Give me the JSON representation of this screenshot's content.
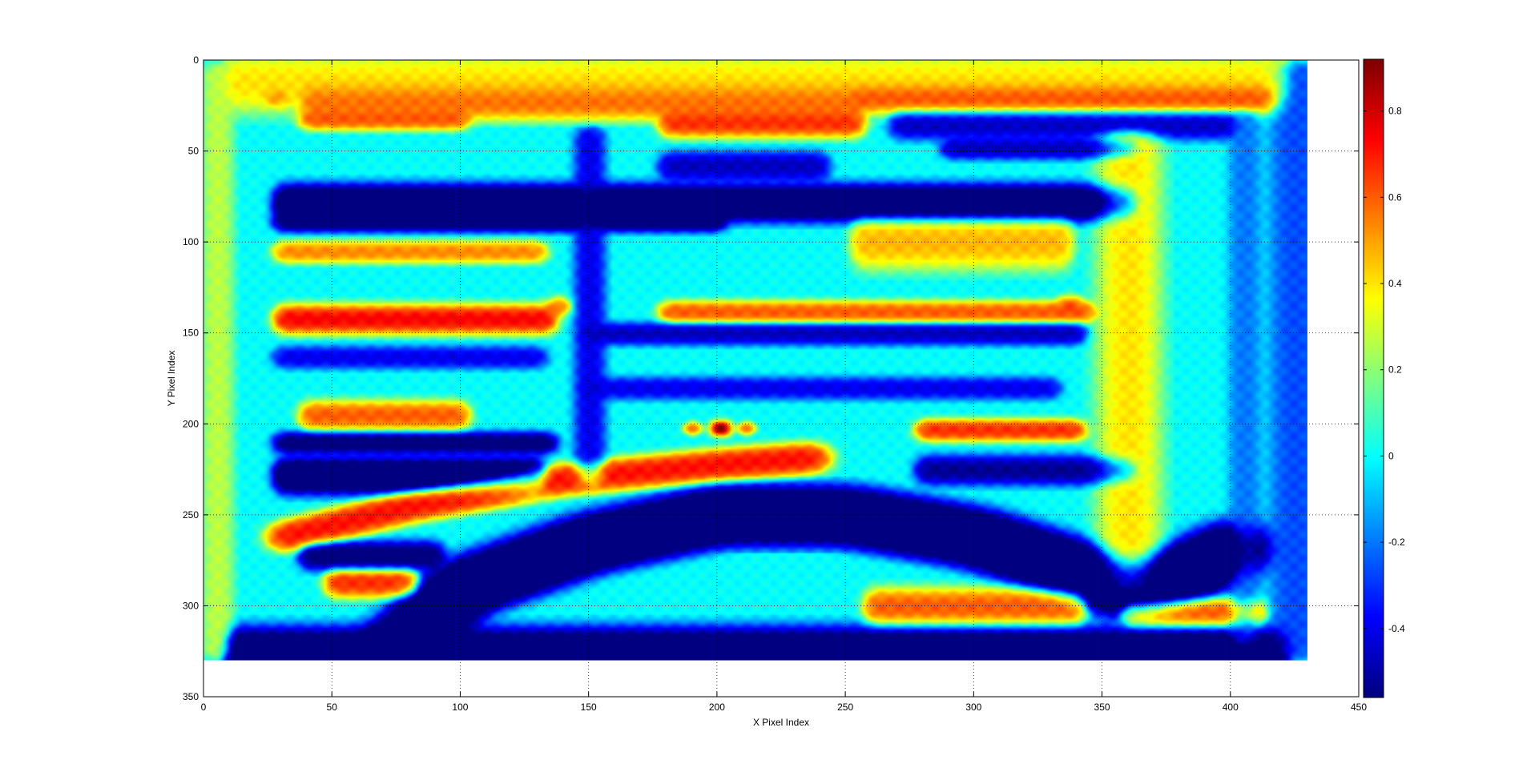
{
  "chart_data": {
    "type": "heatmap",
    "title": "",
    "xlabel": "X Pixel Index",
    "ylabel": "Y Pixel Index",
    "xlim": [
      0,
      450
    ],
    "ylim": [
      350,
      0
    ],
    "y_reversed": true,
    "grid": true,
    "grid_style": "dotted",
    "image_extent": {
      "x": [
        0,
        430
      ],
      "y": [
        0,
        330
      ]
    },
    "x_ticks": [
      0,
      50,
      100,
      150,
      200,
      250,
      300,
      350,
      400,
      450
    ],
    "x_tick_labels": [
      "0",
      "50",
      "100",
      "150",
      "200",
      "250",
      "300",
      "350",
      "400",
      "450"
    ],
    "y_ticks": [
      0,
      50,
      100,
      150,
      200,
      250,
      300,
      350
    ],
    "y_tick_labels": [
      "0",
      "50",
      "100",
      "150",
      "200",
      "250",
      "300",
      "350"
    ],
    "colormap": "jet",
    "colorbar": {
      "position": "right",
      "range": [
        -0.56,
        0.92
      ],
      "ticks": [
        -0.4,
        -0.2,
        0,
        0.2,
        0.4,
        0.6,
        0.8
      ],
      "tick_labels": [
        "-0.4",
        "-0.2",
        "0",
        "0.2",
        "0.4",
        "0.6",
        "0.8"
      ]
    },
    "background_value": 0.0,
    "features": [
      {
        "kind": "hband",
        "y": 22,
        "x0": 40,
        "x1": 255,
        "thick": 5,
        "value": 0.45
      },
      {
        "kind": "hband",
        "y": 32,
        "x0": 40,
        "x1": 100,
        "thick": 3,
        "value": 0.45
      },
      {
        "kind": "hband",
        "y": 20,
        "x0": 255,
        "x1": 415,
        "thick": 4,
        "value": 0.5
      },
      {
        "kind": "hband",
        "y": 34,
        "x0": 180,
        "x1": 255,
        "thick": 4,
        "value": 0.5
      },
      {
        "kind": "hband",
        "y": 12,
        "x0": 10,
        "x1": 420,
        "thick": 8,
        "value": 0.3
      },
      {
        "kind": "hband",
        "y": 35,
        "x0": 270,
        "x1": 400,
        "thick": 4,
        "value": -0.35
      },
      {
        "kind": "hband",
        "y": 48,
        "x0": 290,
        "x1": 360,
        "thick": 3,
        "value": -0.35
      },
      {
        "kind": "hband",
        "y": 58,
        "x0": 180,
        "x1": 240,
        "thick": 4,
        "value": -0.35
      },
      {
        "kind": "hband",
        "y": 78,
        "x0": 30,
        "x1": 360,
        "thick": 5,
        "value": -0.55
      },
      {
        "kind": "hband",
        "y": 88,
        "x0": 30,
        "x1": 200,
        "thick": 3,
        "value": -0.45
      },
      {
        "kind": "hband",
        "y": 105,
        "x0": 30,
        "x1": 130,
        "thick": 3,
        "value": 0.4
      },
      {
        "kind": "hband",
        "y": 100,
        "x0": 255,
        "x1": 335,
        "thick": 7,
        "value": 0.35
      },
      {
        "kind": "hband",
        "y": 138,
        "x0": 180,
        "x1": 345,
        "thick": 3,
        "value": 0.45
      },
      {
        "kind": "hband",
        "y": 142,
        "x0": 30,
        "x1": 135,
        "thick": 4,
        "value": 0.55
      },
      {
        "kind": "hband",
        "y": 150,
        "x0": 150,
        "x1": 340,
        "thick": 3,
        "value": -0.35
      },
      {
        "kind": "hband",
        "y": 163,
        "x0": 30,
        "x1": 130,
        "thick": 3,
        "value": -0.3
      },
      {
        "kind": "hband",
        "y": 180,
        "x0": 150,
        "x1": 330,
        "thick": 3,
        "value": -0.3
      },
      {
        "kind": "hband",
        "y": 195,
        "x0": 40,
        "x1": 100,
        "thick": 4,
        "value": 0.45
      },
      {
        "kind": "hband",
        "y": 210,
        "x0": 30,
        "x1": 135,
        "thick": 3,
        "value": -0.45
      },
      {
        "kind": "hband",
        "y": 203,
        "x0": 280,
        "x1": 340,
        "thick": 3,
        "value": 0.5
      },
      {
        "kind": "hband",
        "y": 228,
        "x0": 30,
        "x1": 130,
        "thick": 5,
        "value": -0.55
      },
      {
        "kind": "hband",
        "y": 225,
        "x0": 280,
        "x1": 360,
        "thick": 4,
        "value": -0.4
      },
      {
        "kind": "hband",
        "y": 323,
        "x0": 10,
        "x1": 420,
        "thick": 6,
        "value": -0.5
      },
      {
        "kind": "hband",
        "y": 300,
        "x0": 260,
        "x1": 340,
        "thick": 5,
        "value": 0.45
      },
      {
        "kind": "hband",
        "y": 272,
        "x0": 40,
        "x1": 90,
        "thick": 4,
        "value": -0.45
      },
      {
        "kind": "hband",
        "y": 287,
        "x0": 50,
        "x1": 80,
        "thick": 4,
        "value": 0.5
      },
      {
        "kind": "hband",
        "y": 303,
        "x0": 360,
        "x1": 410,
        "thick": 4,
        "value": 0.45
      },
      {
        "kind": "vband",
        "x": 5,
        "y0": 5,
        "y1": 325,
        "thick": 3,
        "value": 0.2
      },
      {
        "kind": "vband",
        "x": 425,
        "y0": 5,
        "y1": 325,
        "thick": 5,
        "value": -0.2
      },
      {
        "kind": "vband",
        "x": 405,
        "y0": 30,
        "y1": 320,
        "thick": 3,
        "value": -0.15
      },
      {
        "kind": "vband",
        "x": 150,
        "y0": 40,
        "y1": 230,
        "thick": 3,
        "value": -0.3
      },
      {
        "kind": "vband",
        "x": 360,
        "y0": 40,
        "y1": 290,
        "thick": 6,
        "value": 0.3
      },
      {
        "kind": "curve",
        "points": [
          [
            70,
            330
          ],
          [
            100,
            290
          ],
          [
            150,
            265
          ],
          [
            200,
            250
          ],
          [
            250,
            250
          ],
          [
            300,
            262
          ],
          [
            340,
            280
          ],
          [
            360,
            292
          ],
          [
            385,
            280
          ],
          [
            405,
            265
          ]
        ],
        "thick": 7,
        "value": -0.5
      },
      {
        "kind": "curve",
        "points": [
          [
            30,
            262
          ],
          [
            80,
            245
          ],
          [
            140,
            230
          ],
          [
            200,
            222
          ],
          [
            240,
            218
          ]
        ],
        "thick": 4,
        "value": 0.5
      },
      {
        "kind": "spot",
        "x": 201,
        "y": 202,
        "r": 2.5,
        "value": 0.92
      },
      {
        "kind": "spot",
        "x": 190,
        "y": 202,
        "r": 2,
        "value": 0.6
      },
      {
        "kind": "spot",
        "x": 211,
        "y": 202,
        "r": 2,
        "value": 0.6
      },
      {
        "kind": "spot",
        "x": 28,
        "y": 20,
        "r": 3,
        "value": 0.55
      },
      {
        "kind": "spot",
        "x": 138,
        "y": 135,
        "r": 3,
        "value": 0.55
      },
      {
        "kind": "spot",
        "x": 337,
        "y": 134,
        "r": 3,
        "value": 0.55
      }
    ]
  }
}
